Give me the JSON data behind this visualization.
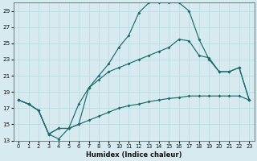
{
  "xlabel": "Humidex (Indice chaleur)",
  "bg_color": "#d6eaf0",
  "grid_color": "#b8d8e0",
  "line_color": "#1a6b6b",
  "xlim": [
    -0.5,
    23.5
  ],
  "ylim": [
    13,
    30
  ],
  "yticks": [
    13,
    15,
    17,
    19,
    21,
    23,
    25,
    27,
    29
  ],
  "xticks": [
    0,
    1,
    2,
    3,
    4,
    5,
    6,
    7,
    8,
    9,
    10,
    11,
    12,
    13,
    14,
    15,
    16,
    17,
    18,
    19,
    20,
    21,
    22,
    23
  ],
  "curve1_x": [
    0,
    1,
    2,
    3,
    4,
    5,
    6,
    7,
    8,
    9,
    10,
    11,
    12,
    13,
    14,
    15,
    16,
    17,
    18,
    19,
    20,
    21,
    22,
    23
  ],
  "curve1_y": [
    18.0,
    17.5,
    16.7,
    13.8,
    13.2,
    14.5,
    15.0,
    19.5,
    21.0,
    22.5,
    24.5,
    26.0,
    28.8,
    30.0,
    30.0,
    30.0,
    30.0,
    29.0,
    25.5,
    23.0,
    21.5,
    21.5,
    22.0,
    18.0
  ],
  "curve2_x": [
    0,
    1,
    2,
    3,
    4,
    5,
    6,
    7,
    8,
    9,
    10,
    11,
    12,
    13,
    14,
    15,
    16,
    17,
    18,
    19,
    20,
    21,
    22,
    23
  ],
  "curve2_y": [
    18.0,
    17.5,
    16.7,
    13.8,
    14.5,
    14.5,
    17.5,
    19.5,
    20.5,
    21.5,
    22.0,
    22.5,
    23.0,
    23.5,
    24.0,
    24.5,
    25.5,
    25.3,
    23.5,
    23.2,
    21.5,
    21.5,
    22.0,
    18.0
  ],
  "curve3_x": [
    0,
    1,
    2,
    3,
    4,
    5,
    6,
    7,
    8,
    9,
    10,
    11,
    12,
    13,
    14,
    15,
    16,
    17,
    18,
    19,
    20,
    21,
    22,
    23
  ],
  "curve3_y": [
    18.0,
    17.5,
    16.7,
    13.8,
    14.5,
    14.5,
    15.0,
    15.5,
    16.0,
    16.5,
    17.0,
    17.3,
    17.5,
    17.8,
    18.0,
    18.2,
    18.3,
    18.5,
    18.5,
    18.5,
    18.5,
    18.5,
    18.5,
    18.0
  ]
}
